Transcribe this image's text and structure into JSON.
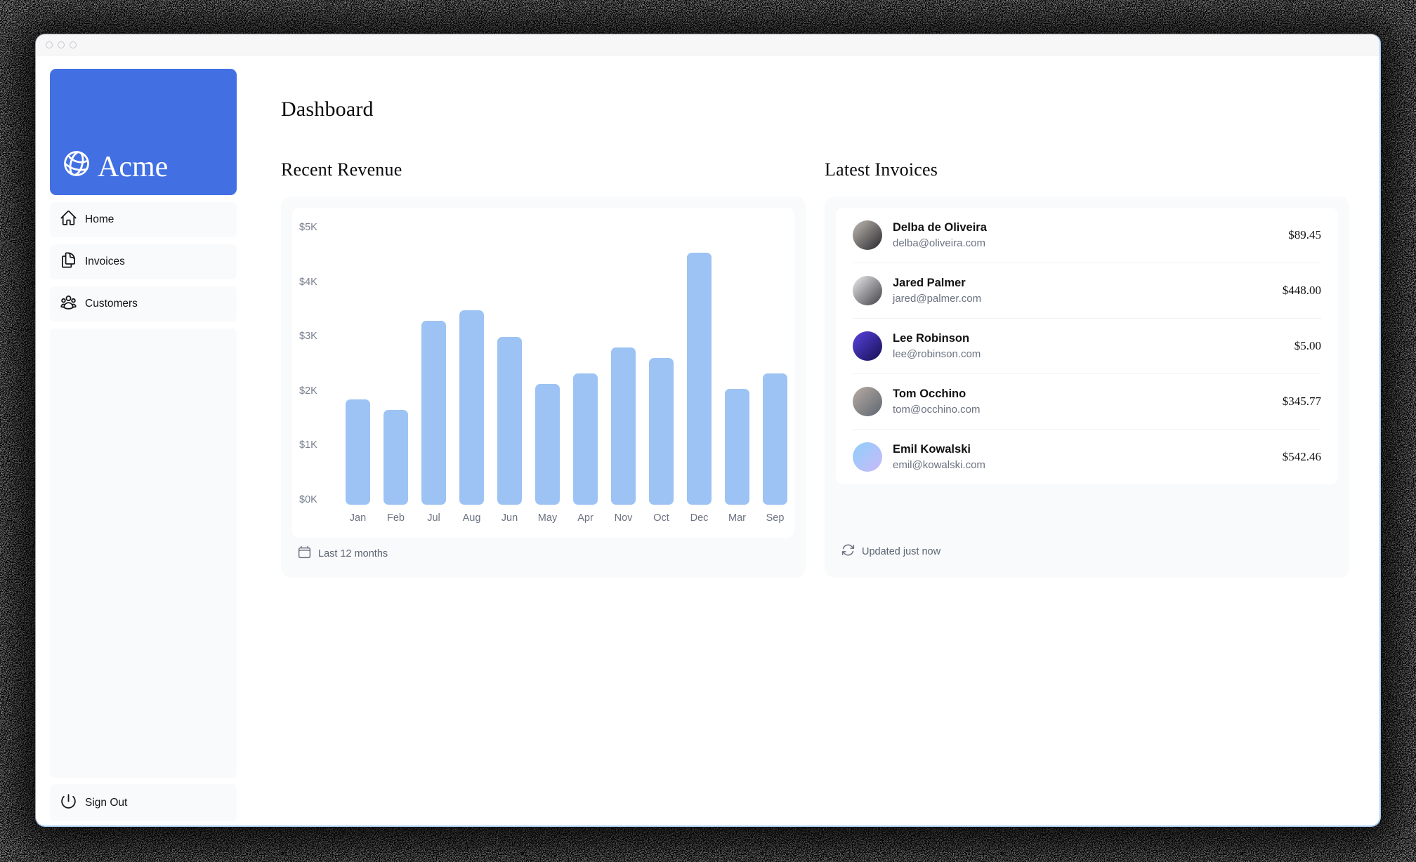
{
  "window": {
    "traffic_lights": [
      "close",
      "minimize",
      "maximize"
    ]
  },
  "sidebar": {
    "brand_name": "Acme",
    "items": [
      {
        "label": "Home",
        "icon": "home-icon"
      },
      {
        "label": "Invoices",
        "icon": "invoices-icon"
      },
      {
        "label": "Customers",
        "icon": "customers-icon"
      }
    ],
    "sign_out_label": "Sign Out"
  },
  "header": {
    "title": "Dashboard"
  },
  "revenue_section": {
    "heading": "Recent Revenue",
    "footer_label": "Last 12 months",
    "footer_icon": "calendar-icon"
  },
  "invoices_section": {
    "heading": "Latest Invoices",
    "footer_label": "Updated just now",
    "footer_icon": "refresh-icon",
    "items": [
      {
        "name": "Delba de Oliveira",
        "email": "delba@oliveira.com",
        "amount": "$89.45",
        "avatar_colors": [
          "#c3bcb4",
          "#26262c"
        ]
      },
      {
        "name": "Jared Palmer",
        "email": "jared@palmer.com",
        "amount": "$448.00",
        "avatar_colors": [
          "#ededef",
          "#3f3f45"
        ]
      },
      {
        "name": "Lee Robinson",
        "email": "lee@robinson.com",
        "amount": "$5.00",
        "avatar_colors": [
          "#5a43e0",
          "#141052"
        ]
      },
      {
        "name": "Tom Occhino",
        "email": "tom@occhino.com",
        "amount": "$345.77",
        "avatar_colors": [
          "#b9aca4",
          "#5c6670"
        ]
      },
      {
        "name": "Emil Kowalski",
        "email": "emil@kowalski.com",
        "amount": "$542.46",
        "avatar_colors": [
          "#8fd0fb",
          "#c9b8f8"
        ]
      }
    ]
  },
  "chart_data": {
    "type": "bar",
    "title": "Recent Revenue",
    "categories": [
      "Jan",
      "Feb",
      "Jul",
      "Aug",
      "Jun",
      "May",
      "Apr",
      "Nov",
      "Oct",
      "Dec",
      "Mar",
      "Sep"
    ],
    "values": [
      2000,
      1800,
      3500,
      3700,
      3200,
      2300,
      2500,
      3000,
      2800,
      4800,
      2200,
      2500
    ],
    "y_ticks": [
      "$5K",
      "$4K",
      "$3K",
      "$2K",
      "$1K",
      "$0K"
    ],
    "ylim": [
      0,
      5000
    ],
    "xlabel": "",
    "ylabel": "",
    "grid": false,
    "legend": null,
    "bar_color": "#9dc3f4"
  },
  "colors": {
    "brand_blue": "#4270e2",
    "bar_blue": "#9dc3f4",
    "card_bg": "#f9fafb",
    "muted_text": "#6b7280"
  }
}
